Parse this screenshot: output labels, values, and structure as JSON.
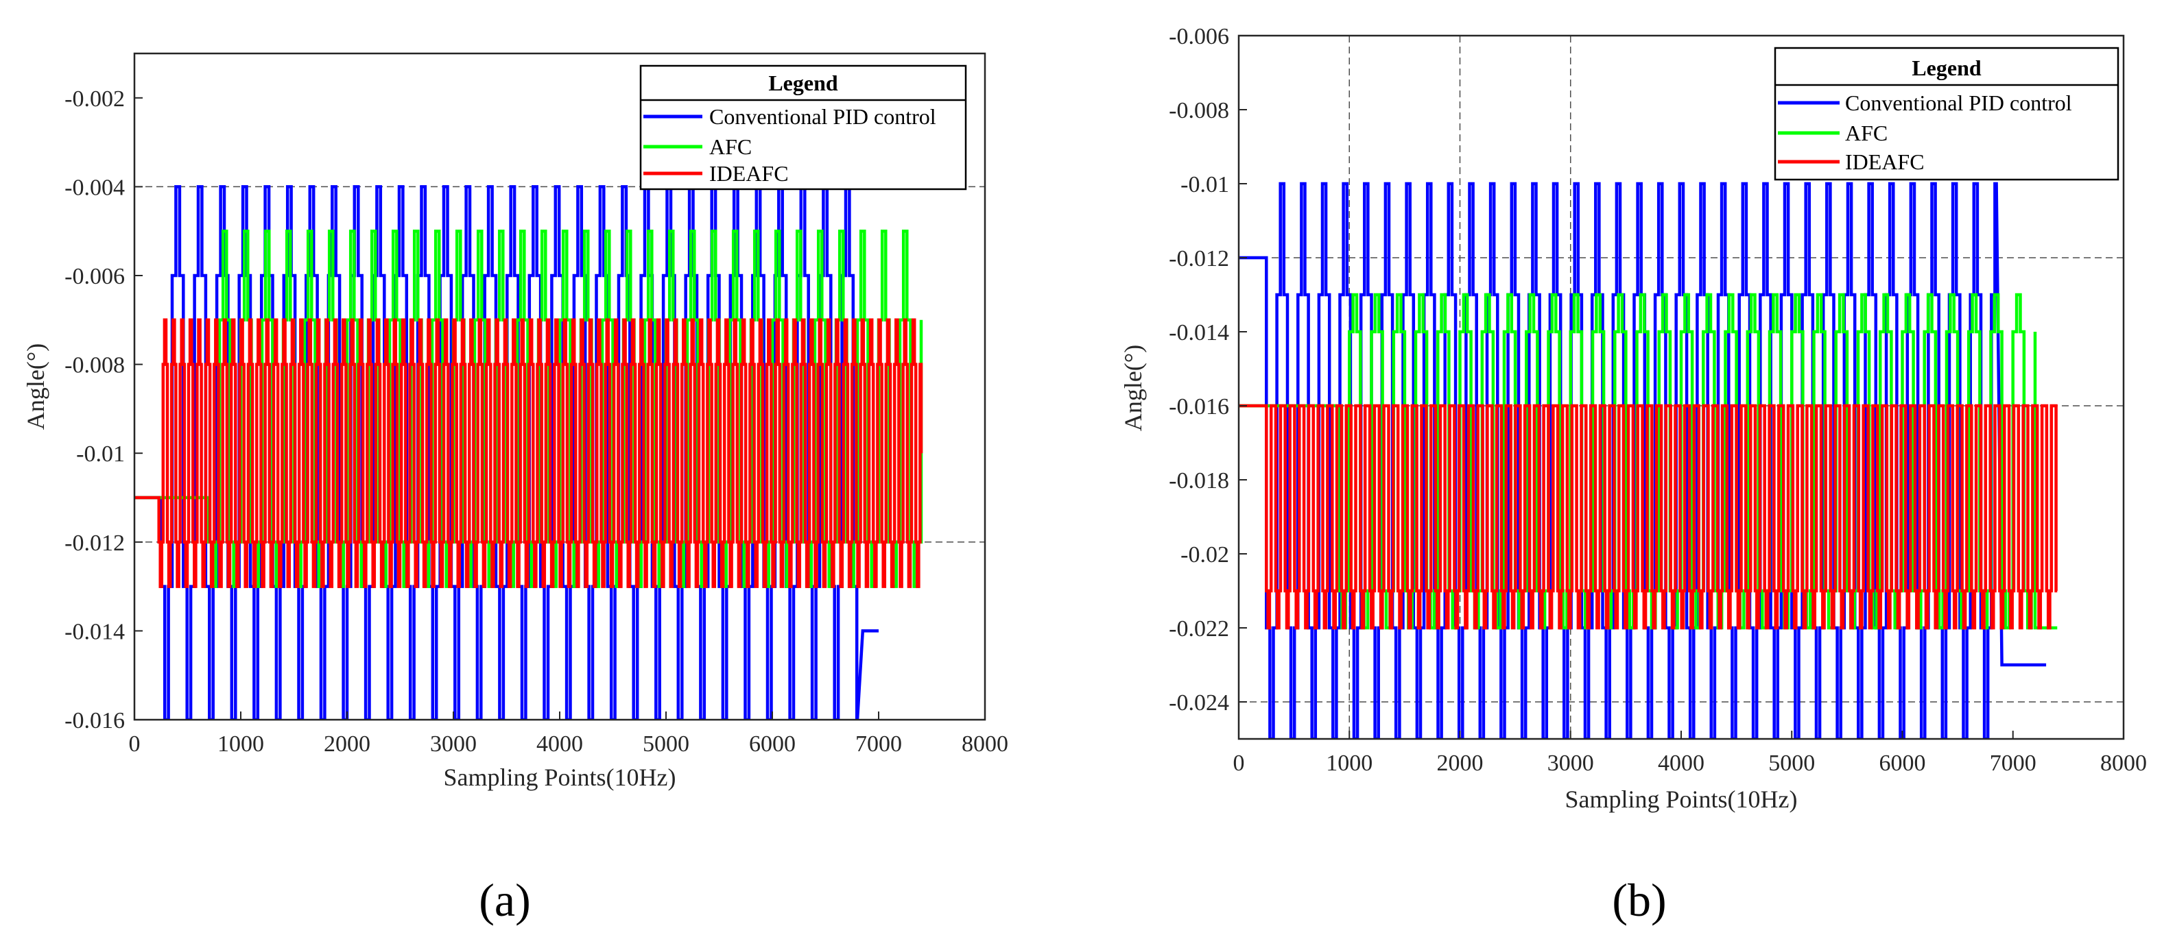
{
  "colors": {
    "pid": "#0000FF",
    "afc": "#00FF00",
    "ideafc": "#FF0000",
    "grid": "#4d4d4d",
    "frame": "#262626"
  },
  "chart_data": [
    {
      "type": "line",
      "panel": "a",
      "panel_label": "(a)",
      "xlabel": "Sampling Points(10Hz)",
      "ylabel": "Angle(°)",
      "xlim": [
        0,
        8000
      ],
      "ylim": [
        -0.016,
        -0.001
      ],
      "x_ticks": [
        0,
        1000,
        2000,
        3000,
        4000,
        5000,
        6000,
        7000,
        8000
      ],
      "x_tick_labels": [
        "0",
        "1000",
        "2000",
        "3000",
        "4000",
        "5000",
        "6000",
        "7000",
        "8000"
      ],
      "y_ticks": [
        -0.002,
        -0.004,
        -0.006,
        -0.008,
        -0.01,
        -0.012,
        -0.014,
        -0.016
      ],
      "y_tick_labels": [
        "-0.002",
        "-0.004",
        "-0.006",
        "-0.008",
        "-0.01",
        "-0.012",
        "-0.014",
        "-0.016"
      ],
      "grid_y": [
        -0.004,
        -0.012
      ],
      "legend": {
        "title": "Legend",
        "position": "top-right",
        "entries": [
          "Conventional PID control",
          "AFC",
          "IDEAFC"
        ]
      },
      "series": [
        {
          "name": "Conventional PID control",
          "key": "pid",
          "initial": -0.011,
          "start": 250,
          "end": 6800,
          "period": 210,
          "high": -0.004,
          "low": -0.016,
          "mid_high": -0.006,
          "mid_low": -0.013,
          "final": -0.014,
          "final_end": 6850,
          "final_x": 7000
        },
        {
          "name": "AFC",
          "key": "afc",
          "initial": -0.011,
          "start": 700,
          "end": 7400,
          "period": 200,
          "high": -0.005,
          "low": -0.013,
          "mid_high": -0.007,
          "mid_low": -0.012,
          "final": -0.007,
          "final_end": 7400,
          "final_x": 7400
        },
        {
          "name": "IDEAFC",
          "key": "ideafc",
          "initial": -0.011,
          "start": 230,
          "end": 7400,
          "period": 80,
          "high": -0.007,
          "low": -0.013,
          "mid_high": -0.008,
          "mid_low": -0.012,
          "final": -0.01,
          "final_end": 7400,
          "final_x": 7400
        }
      ]
    },
    {
      "type": "line",
      "panel": "b",
      "panel_label": "(b)",
      "xlabel": "Sampling Points(10Hz)",
      "ylabel": "Angle(°)",
      "xlim": [
        0,
        8000
      ],
      "ylim": [
        -0.025,
        -0.006
      ],
      "x_ticks": [
        0,
        1000,
        2000,
        3000,
        4000,
        5000,
        6000,
        7000,
        8000
      ],
      "x_tick_labels": [
        "0",
        "1000",
        "2000",
        "3000",
        "4000",
        "5000",
        "6000",
        "7000",
        "8000"
      ],
      "y_ticks": [
        -0.006,
        -0.008,
        -0.01,
        -0.012,
        -0.014,
        -0.016,
        -0.018,
        -0.02,
        -0.022,
        -0.024
      ],
      "y_tick_labels": [
        "-0.006",
        "-0.008",
        "-0.01",
        "-0.012",
        "-0.014",
        "-0.016",
        "-0.018",
        "-0.02",
        "-0.022",
        "-0.024"
      ],
      "grid_y": [
        -0.012,
        -0.016,
        -0.024
      ],
      "grid_x": [
        1000,
        2000,
        3000
      ],
      "legend": {
        "title": "Legend",
        "position": "top-right",
        "entries": [
          "Conventional PID control",
          "AFC",
          "IDEAFC"
        ]
      },
      "series": [
        {
          "name": "Conventional PID control",
          "key": "pid",
          "initial": -0.012,
          "start": 250,
          "end": 6850,
          "period": 190,
          "high": -0.01,
          "low": -0.025,
          "mid_high": -0.013,
          "mid_low": -0.022,
          "final": -0.023,
          "final_end": 6900,
          "final_x": 7300
        },
        {
          "name": "AFC",
          "key": "afc",
          "initial": -0.016,
          "start": 900,
          "end": 7200,
          "period": 200,
          "high": -0.013,
          "low": -0.022,
          "mid_high": -0.014,
          "mid_low": -0.021,
          "final": -0.022,
          "final_end": 7200,
          "final_x": 7400
        },
        {
          "name": "IDEAFC",
          "key": "ideafc",
          "initial": -0.016,
          "start": 250,
          "end": 7400,
          "period": 85,
          "high": -0.016,
          "low": -0.022,
          "mid_high": -0.016,
          "mid_low": -0.021,
          "final": -0.021,
          "final_end": 7400,
          "final_x": 7400
        }
      ]
    }
  ]
}
